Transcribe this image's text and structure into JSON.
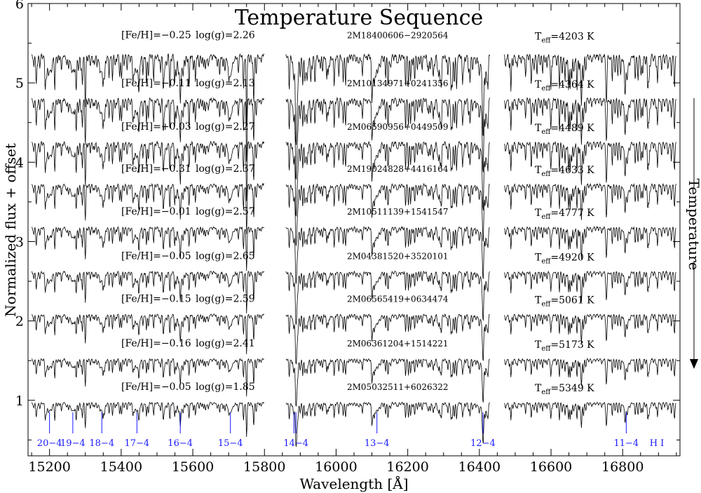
{
  "chart_data": {
    "type": "line",
    "title": "Temperature Sequence",
    "xlabel": "Wavelength [Å]",
    "ylabel": "Normalized flux + offset",
    "arrow_label": "Temperature",
    "xlim": [
      15140,
      16960
    ],
    "ylim": [
      0.3,
      6.0
    ],
    "x_ticks": [
      15200,
      15400,
      15600,
      15800,
      16000,
      16200,
      16400,
      16600,
      16800
    ],
    "x_tick_labels": [
      "15200",
      "15400",
      "15600",
      "15800",
      "16000",
      "16200",
      "16400",
      "16600",
      "16800"
    ],
    "y_ticks": [
      1,
      2,
      3,
      4,
      5,
      6
    ],
    "y_tick_labels": [
      "1",
      "2",
      "3",
      "4",
      "5",
      "6"
    ],
    "detector_chips": [
      [
        15150,
        15800
      ],
      [
        15860,
        16430
      ],
      [
        16470,
        16950
      ]
    ],
    "series": [
      {
        "feh": "[Fe/H]=−0.25",
        "logg": "log(g)=2.26",
        "star": "2M18400606−2920564",
        "teff_prefix": "T",
        "teff_sub": "eff",
        "teff_value": "=4203 K",
        "offset": 5.35,
        "noise": 0.12
      },
      {
        "feh": "[Fe/H]=−0.11",
        "logg": "log(g)=2.13",
        "star": "2M10134971+0241356",
        "teff_prefix": "T",
        "teff_sub": "eff",
        "teff_value": "=4364 K",
        "offset": 4.8,
        "noise": 0.1
      },
      {
        "feh": "[Fe/H]=+0.03",
        "logg": "log(g)=2.27",
        "star": "2M06590956+0449509",
        "teff_prefix": "T",
        "teff_sub": "eff",
        "teff_value": "=4489 K",
        "offset": 4.25,
        "noise": 0.09
      },
      {
        "feh": "[Fe/H]=−0.31",
        "logg": "log(g)=2.37",
        "star": "2M19024828+4416164",
        "teff_prefix": "T",
        "teff_sub": "eff",
        "teff_value": "=4633 K",
        "offset": 3.72,
        "noise": 0.07
      },
      {
        "feh": "[Fe/H]=−0.01",
        "logg": "log(g)=2.57",
        "star": "2M10511139+1541547",
        "teff_prefix": "T",
        "teff_sub": "eff",
        "teff_value": "=4777 K",
        "offset": 3.18,
        "noise": 0.06
      },
      {
        "feh": "[Fe/H]=−0.05",
        "logg": "log(g)=2.65",
        "star": "2M04381520+3520101",
        "teff_prefix": "T",
        "teff_sub": "eff",
        "teff_value": "=4920 K",
        "offset": 2.62,
        "noise": 0.055
      },
      {
        "feh": "[Fe/H]=−0.15",
        "logg": "log(g)=2.59",
        "star": "2M06565419+0634474",
        "teff_prefix": "T",
        "teff_sub": "eff",
        "teff_value": "=5061 K",
        "offset": 2.08,
        "noise": 0.05
      },
      {
        "feh": "[Fe/H]=−0.16",
        "logg": "log(g)=2.41",
        "star": "2M06361204+1514221",
        "teff_prefix": "T",
        "teff_sub": "eff",
        "teff_value": "=5173 K",
        "offset": 1.52,
        "noise": 0.045
      },
      {
        "feh": "[Fe/H]=−0.05",
        "logg": "log(g)=1.85",
        "star": "2M05032511+6026322",
        "teff_prefix": "T",
        "teff_sub": "eff",
        "teff_value": "=5349 K",
        "offset": 0.97,
        "noise": 0.04
      }
    ],
    "hydrogen_lines": [
      {
        "label": "20−4",
        "wavelength": 15200
      },
      {
        "label": "19−4",
        "wavelength": 15265
      },
      {
        "label": "18−4",
        "wavelength": 15346
      },
      {
        "label": "17−4",
        "wavelength": 15444
      },
      {
        "label": "16−4",
        "wavelength": 15565
      },
      {
        "label": "15−4",
        "wavelength": 15705
      },
      {
        "label": "14−4",
        "wavelength": 15888
      },
      {
        "label": "13−4",
        "wavelength": 16114
      },
      {
        "label": "12−4",
        "wavelength": 16410
      },
      {
        "label": "11−4",
        "wavelength": 16810
      }
    ],
    "hydrogen_series_label": "H I",
    "colors": {
      "spectrum": "#000000",
      "hline": "#1a1aff",
      "axis": "#000000"
    }
  }
}
